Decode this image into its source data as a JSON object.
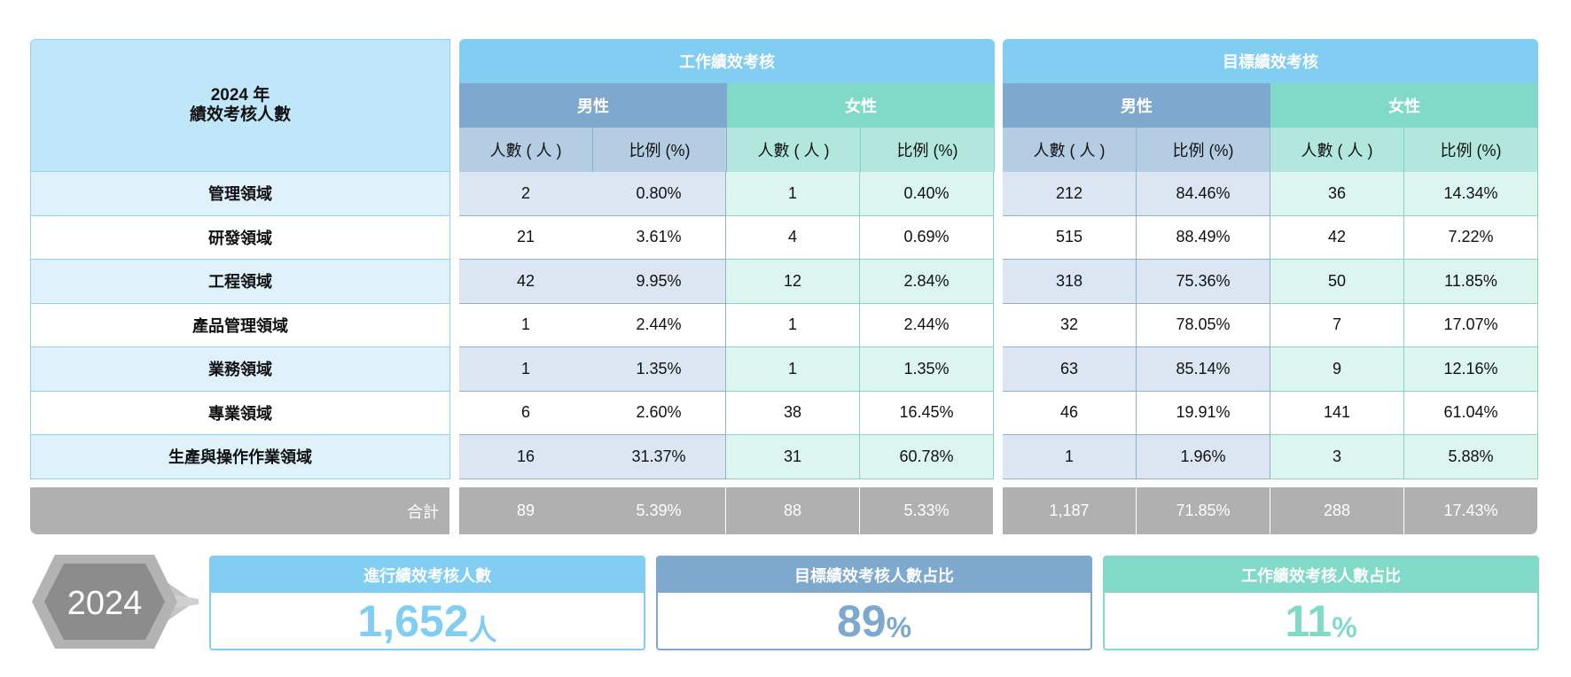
{
  "corner": {
    "line1": "2024 年",
    "line2": "績效考核人數"
  },
  "groups": [
    "工作績效考核",
    "目標績效考核"
  ],
  "genders": {
    "male": "男性",
    "female": "女性"
  },
  "subheaders": {
    "count": "人數 ( 人 )",
    "ratio": "比例 (%)"
  },
  "rows": [
    {
      "label": "管理領域",
      "vals": [
        "2",
        "0.80%",
        "1",
        "0.40%",
        "212",
        "84.46%",
        "36",
        "14.34%"
      ]
    },
    {
      "label": "研發領域",
      "vals": [
        "21",
        "3.61%",
        "4",
        "0.69%",
        "515",
        "88.49%",
        "42",
        "7.22%"
      ]
    },
    {
      "label": "工程領域",
      "vals": [
        "42",
        "9.95%",
        "12",
        "2.84%",
        "318",
        "75.36%",
        "50",
        "11.85%"
      ]
    },
    {
      "label": "產品管理領域",
      "vals": [
        "1",
        "2.44%",
        "1",
        "2.44%",
        "32",
        "78.05%",
        "7",
        "17.07%"
      ]
    },
    {
      "label": "業務領域",
      "vals": [
        "1",
        "1.35%",
        "1",
        "1.35%",
        "63",
        "85.14%",
        "9",
        "12.16%"
      ]
    },
    {
      "label": "專業領域",
      "vals": [
        "6",
        "2.60%",
        "38",
        "16.45%",
        "46",
        "19.91%",
        "141",
        "61.04%"
      ]
    },
    {
      "label": "生產與操作作業領域",
      "vals": [
        "16",
        "31.37%",
        "31",
        "60.78%",
        "1",
        "1.96%",
        "3",
        "5.88%"
      ]
    }
  ],
  "total": {
    "label": "合計",
    "vals": [
      "89",
      "5.39%",
      "88",
      "5.33%",
      "1,187",
      "71.85%",
      "288",
      "17.43%"
    ]
  },
  "year_badge": "2024",
  "stats": [
    {
      "title": "進行績效考核人數",
      "value": "1,652",
      "unit": "人",
      "color": "#82cef3"
    },
    {
      "title": "目標績效考核人數占比",
      "value": "89",
      "unit": "%",
      "color": "#7ea8cd"
    },
    {
      "title": "工作績效考核人數占比",
      "value": "11",
      "unit": "%",
      "color": "#80dac7"
    }
  ]
}
